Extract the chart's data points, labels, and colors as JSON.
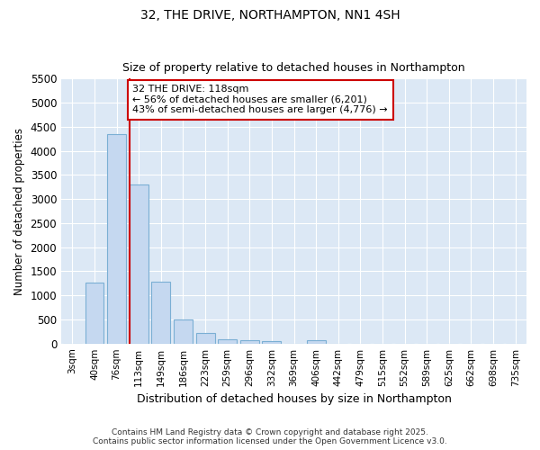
{
  "title1": "32, THE DRIVE, NORTHAMPTON, NN1 4SH",
  "title2": "Size of property relative to detached houses in Northampton",
  "xlabel": "Distribution of detached houses by size in Northampton",
  "ylabel": "Number of detached properties",
  "categories": [
    "3sqm",
    "40sqm",
    "76sqm",
    "113sqm",
    "149sqm",
    "186sqm",
    "223sqm",
    "259sqm",
    "296sqm",
    "332sqm",
    "369sqm",
    "406sqm",
    "442sqm",
    "479sqm",
    "515sqm",
    "552sqm",
    "589sqm",
    "625sqm",
    "662sqm",
    "698sqm",
    "735sqm"
  ],
  "values": [
    0,
    1260,
    4350,
    3300,
    1280,
    500,
    220,
    90,
    60,
    50,
    0,
    60,
    0,
    0,
    0,
    0,
    0,
    0,
    0,
    0,
    0
  ],
  "bar_color": "#c5d8f0",
  "bar_edge_color": "#7bafd4",
  "red_line_index": 3,
  "annotation_text": "32 THE DRIVE: 118sqm\n← 56% of detached houses are smaller (6,201)\n43% of semi-detached houses are larger (4,776) →",
  "annotation_box_color": "#ffffff",
  "annotation_border_color": "#cc0000",
  "red_line_color": "#cc0000",
  "ylim": [
    0,
    5500
  ],
  "yticks": [
    0,
    500,
    1000,
    1500,
    2000,
    2500,
    3000,
    3500,
    4000,
    4500,
    5000,
    5500
  ],
  "background_color": "#dce8f5",
  "grid_color": "#ffffff",
  "fig_bg_color": "#ffffff",
  "footer1": "Contains HM Land Registry data © Crown copyright and database right 2025.",
  "footer2": "Contains public sector information licensed under the Open Government Licence v3.0."
}
